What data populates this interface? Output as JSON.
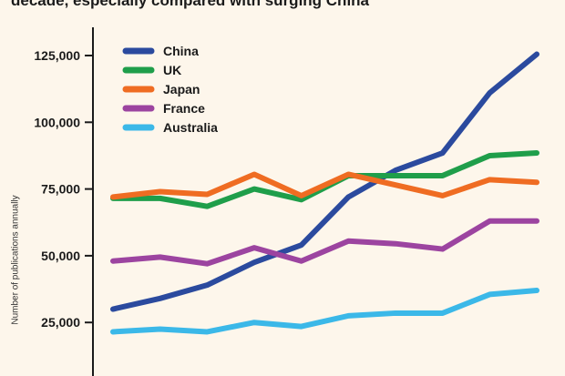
{
  "chart_data": {
    "type": "line",
    "title": "decade, especially compared with surging China",
    "xlabel": "",
    "ylabel": "Number of publications annually",
    "ylim": [
      0,
      130000
    ],
    "yticks": [
      25000,
      50000,
      75000,
      100000,
      125000
    ],
    "ytick_labels": [
      "25,000",
      "50,000",
      "75,000",
      "100,000",
      "125,000"
    ],
    "grid": false,
    "legend": "top-left",
    "x": [
      1,
      2,
      3,
      4,
      5,
      6,
      7,
      8,
      9,
      10
    ],
    "series": [
      {
        "name": "China",
        "color": "#2b4a9e",
        "values": [
          30000,
          34000,
          39000,
          47500,
          54000,
          72000,
          82000,
          88500,
          111000,
          125500
        ]
      },
      {
        "name": "UK",
        "color": "#1f9e4a",
        "values": [
          71500,
          71500,
          68500,
          75000,
          71000,
          80000,
          80000,
          80000,
          87500,
          88500
        ]
      },
      {
        "name": "Japan",
        "color": "#ef6c22",
        "values": [
          72000,
          74000,
          73000,
          80500,
          72500,
          80500,
          76500,
          72500,
          78500,
          77500
        ]
      },
      {
        "name": "France",
        "color": "#9c44a0",
        "values": [
          48000,
          49500,
          47000,
          53000,
          48000,
          55500,
          54500,
          52500,
          63000,
          63000
        ]
      },
      {
        "name": "Australia",
        "color": "#3bb8e8",
        "values": [
          21500,
          22500,
          21500,
          25000,
          23500,
          27500,
          28500,
          28500,
          35500,
          37000
        ]
      }
    ]
  }
}
